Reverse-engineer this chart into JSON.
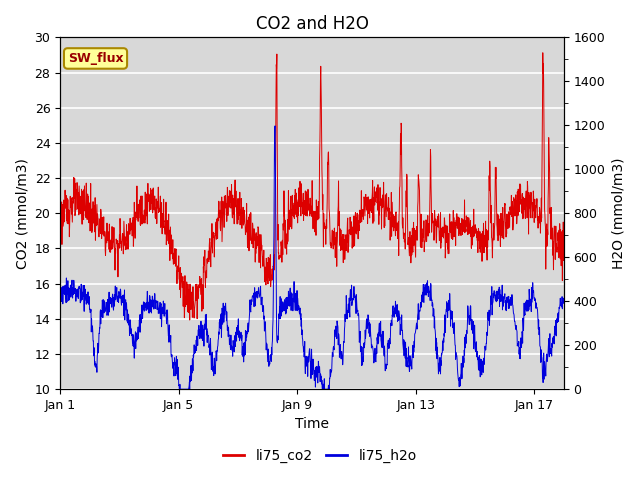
{
  "title": "CO2 and H2O",
  "xlabel": "Time",
  "ylabel_left": "CO2 (mmol/m3)",
  "ylabel_right": "H2O (mmol/m3)",
  "ylim_left": [
    10,
    30
  ],
  "ylim_right": [
    0,
    1600
  ],
  "yticks_left": [
    10,
    12,
    14,
    16,
    18,
    20,
    22,
    24,
    26,
    28,
    30
  ],
  "yticks_right": [
    0,
    200,
    400,
    600,
    800,
    1000,
    1200,
    1400,
    1600
  ],
  "xtick_positions": [
    0,
    4,
    8,
    12,
    16
  ],
  "xtick_labels": [
    "Jan 1",
    "Jan 5",
    "Jan 9",
    "Jan 13",
    "Jan 17"
  ],
  "color_co2": "#dd0000",
  "color_h2o": "#0000dd",
  "label_co2": "li75_co2",
  "label_h2o": "li75_h2o",
  "annotation_text": "SW_flux",
  "plot_bg_color": "#d8d8d8",
  "fig_bg_color": "#ffffff",
  "grid_color": "#ffffff",
  "title_fontsize": 12,
  "axis_fontsize": 10,
  "tick_fontsize": 9,
  "legend_fontsize": 10
}
